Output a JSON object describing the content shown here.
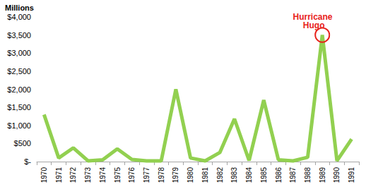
{
  "chart_data": {
    "type": "line",
    "ylabel": "Millions",
    "categories": [
      "1970",
      "1971",
      "1972",
      "1973",
      "1974",
      "1975",
      "1976",
      "1977",
      "1978",
      "1979",
      "1980",
      "1981",
      "1982",
      "1983",
      "1984",
      "1985",
      "1986",
      "1987",
      "1988",
      "1989",
      "1990",
      "1991"
    ],
    "values": [
      1300,
      100,
      380,
      20,
      50,
      350,
      60,
      20,
      20,
      2000,
      100,
      20,
      250,
      1180,
      30,
      1700,
      50,
      20,
      120,
      3500,
      20,
      620
    ],
    "color": "#92d050",
    "ylim": [
      0,
      4000
    ],
    "yticks": [
      {
        "value": 0,
        "label": "$-"
      },
      {
        "value": 500,
        "label": "$500"
      },
      {
        "value": 1000,
        "label": "$1,000"
      },
      {
        "value": 1500,
        "label": "$1,500"
      },
      {
        "value": 2000,
        "label": "$2,000"
      },
      {
        "value": 2500,
        "label": "$2,500"
      },
      {
        "value": 3000,
        "label": "$3,000"
      },
      {
        "value": 3500,
        "label": "$3,500"
      },
      {
        "value": 4000,
        "label": "$4,000"
      }
    ],
    "grid": false,
    "annotation": {
      "text": "Hurricane Hugo",
      "x": "1989",
      "color": "#e8211b"
    }
  }
}
